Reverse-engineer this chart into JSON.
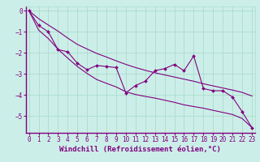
{
  "title": "",
  "xlabel": "Windchill (Refroidissement éolien,°C)",
  "background_color": "#cceee8",
  "line_color": "#800080",
  "grid_color": "#aaddcc",
  "x_data": [
    0,
    1,
    2,
    3,
    4,
    5,
    6,
    7,
    8,
    9,
    10,
    11,
    12,
    13,
    14,
    15,
    16,
    17,
    18,
    19,
    20,
    21,
    22,
    23
  ],
  "y_main": [
    0.0,
    -0.7,
    -1.0,
    -1.85,
    -1.95,
    -2.5,
    -2.8,
    -2.6,
    -2.65,
    -2.7,
    -3.9,
    -3.55,
    -3.35,
    -2.85,
    -2.75,
    -2.55,
    -2.85,
    -2.15,
    -3.7,
    -3.8,
    -3.8,
    -4.1,
    -4.8,
    -5.55
  ],
  "y_upper": [
    0.0,
    -0.38,
    -0.68,
    -0.97,
    -1.3,
    -1.6,
    -1.82,
    -2.03,
    -2.2,
    -2.38,
    -2.55,
    -2.7,
    -2.83,
    -2.95,
    -3.05,
    -3.15,
    -3.25,
    -3.35,
    -3.47,
    -3.57,
    -3.67,
    -3.77,
    -3.88,
    -4.05
  ],
  "y_lower": [
    0.0,
    -0.92,
    -1.32,
    -1.83,
    -2.25,
    -2.65,
    -2.98,
    -3.27,
    -3.45,
    -3.62,
    -3.85,
    -3.98,
    -4.07,
    -4.15,
    -4.25,
    -4.35,
    -4.47,
    -4.55,
    -4.63,
    -4.73,
    -4.83,
    -4.93,
    -5.12,
    -5.55
  ],
  "xlim": [
    0,
    23
  ],
  "ylim": [
    -5.8,
    0.2
  ],
  "xticks": [
    0,
    1,
    2,
    3,
    4,
    5,
    6,
    7,
    8,
    9,
    10,
    11,
    12,
    13,
    14,
    15,
    16,
    17,
    18,
    19,
    20,
    21,
    22,
    23
  ],
  "yticks": [
    0,
    -1,
    -2,
    -3,
    -4,
    -5
  ],
  "markersize": 2.0,
  "linewidth": 0.8,
  "xlabel_fontsize": 6.5,
  "tick_fontsize": 5.5
}
